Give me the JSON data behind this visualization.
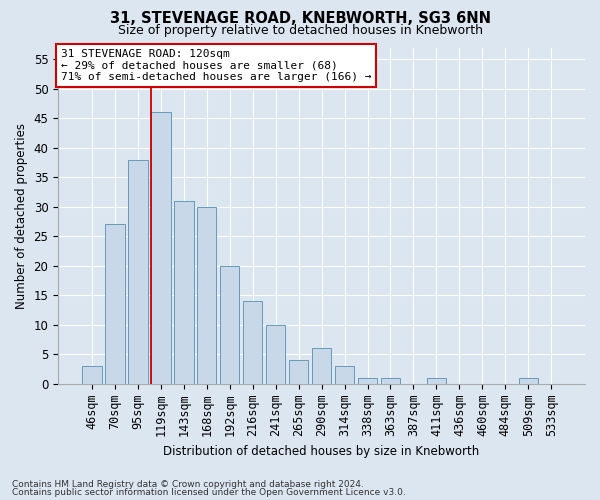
{
  "title1": "31, STEVENAGE ROAD, KNEBWORTH, SG3 6NN",
  "title2": "Size of property relative to detached houses in Knebworth",
  "xlabel": "Distribution of detached houses by size in Knebworth",
  "ylabel": "Number of detached properties",
  "categories": [
    "46sqm",
    "70sqm",
    "95sqm",
    "119sqm",
    "143sqm",
    "168sqm",
    "192sqm",
    "216sqm",
    "241sqm",
    "265sqm",
    "290sqm",
    "314sqm",
    "338sqm",
    "363sqm",
    "387sqm",
    "411sqm",
    "436sqm",
    "460sqm",
    "484sqm",
    "509sqm",
    "533sqm"
  ],
  "values": [
    3,
    27,
    38,
    46,
    31,
    30,
    20,
    14,
    10,
    4,
    6,
    3,
    1,
    1,
    0,
    1,
    0,
    0,
    0,
    1,
    0
  ],
  "bar_color": "#c8d8e8",
  "bar_edge_color": "#6699bb",
  "highlight_bar_index": 3,
  "highlight_line_color": "#cc0000",
  "annotation_text": "31 STEVENAGE ROAD: 120sqm\n← 29% of detached houses are smaller (68)\n71% of semi-detached houses are larger (166) →",
  "annotation_box_color": "#ffffff",
  "annotation_box_edge": "#cc0000",
  "ylim": [
    0,
    57
  ],
  "yticks": [
    0,
    5,
    10,
    15,
    20,
    25,
    30,
    35,
    40,
    45,
    50,
    55
  ],
  "footer1": "Contains HM Land Registry data © Crown copyright and database right 2024.",
  "footer2": "Contains public sector information licensed under the Open Government Licence v3.0.",
  "bg_color": "#dce6f0",
  "title1_fontsize": 10.5,
  "title2_fontsize": 9.0,
  "ylabel_fontsize": 8.5,
  "xlabel_fontsize": 8.5,
  "tick_fontsize": 8.5,
  "annotation_fontsize": 8.0,
  "footer_fontsize": 6.5
}
